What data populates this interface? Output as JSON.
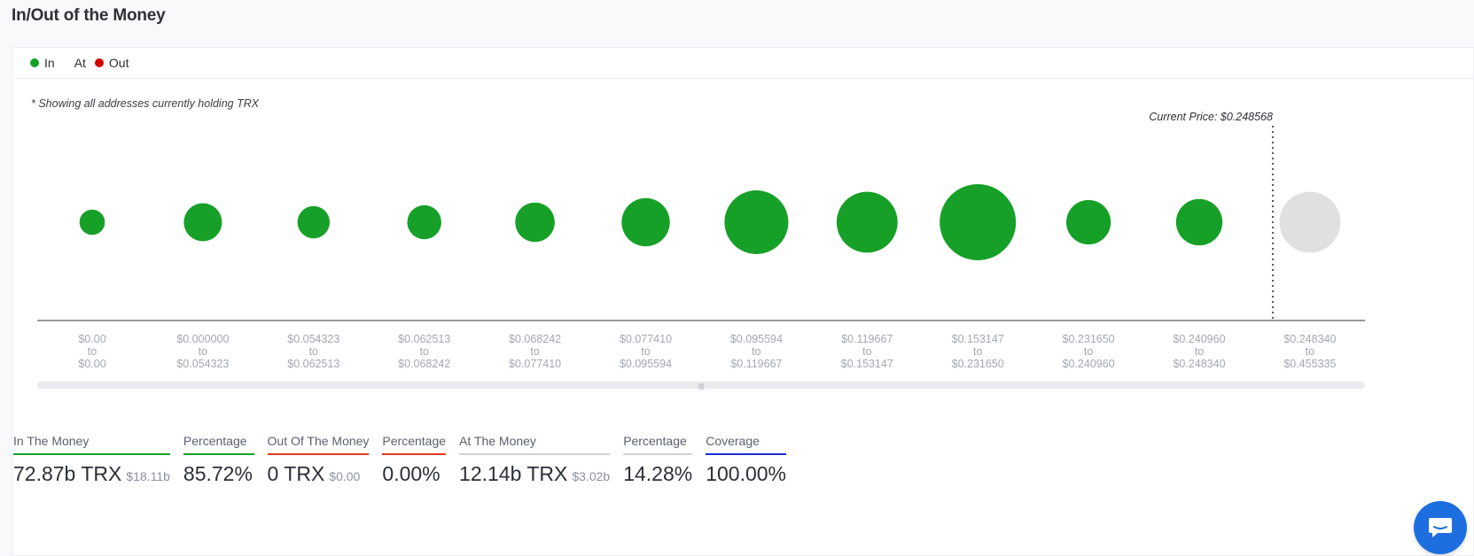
{
  "page": {
    "title": "In/Out of the Money",
    "note": "* Showing all addresses currently holding TRX"
  },
  "legend": [
    {
      "label": "In",
      "color": "#16a028"
    },
    {
      "label": "At",
      "color": ""
    },
    {
      "label": "Out",
      "color": "#d40000"
    }
  ],
  "colors": {
    "in": "#16a028",
    "at": "#e0e0e0",
    "out": "#d40000"
  },
  "chart_data": {
    "type": "bubble",
    "current_price_label": "Current Price: $0.248568",
    "current_price": 0.248568,
    "categories": [
      {
        "from": "$0.00",
        "to": "$0.00",
        "status": "in",
        "size": 0.11
      },
      {
        "from": "$0.000000",
        "to": "$0.054323",
        "status": "in",
        "size": 0.25
      },
      {
        "from": "$0.054323",
        "to": "$0.062513",
        "status": "in",
        "size": 0.18
      },
      {
        "from": "$0.062513",
        "to": "$0.068242",
        "status": "in",
        "size": 0.2
      },
      {
        "from": "$0.068242",
        "to": "$0.077410",
        "status": "in",
        "size": 0.27
      },
      {
        "from": "$0.077410",
        "to": "$0.095594",
        "status": "in",
        "size": 0.4
      },
      {
        "from": "$0.095594",
        "to": "$0.119667",
        "status": "in",
        "size": 0.7
      },
      {
        "from": "$0.119667",
        "to": "$0.153147",
        "status": "in",
        "size": 0.64
      },
      {
        "from": "$0.153147",
        "to": "$0.231650",
        "status": "in",
        "size": 1.0
      },
      {
        "from": "$0.231650",
        "to": "$0.240960",
        "status": "in",
        "size": 0.34
      },
      {
        "from": "$0.240960",
        "to": "$0.248340",
        "status": "in",
        "size": 0.37
      },
      {
        "from": "$0.248340",
        "to": "$0.455335",
        "status": "at",
        "size": 0.64
      }
    ],
    "connector": "to"
  },
  "stats": [
    {
      "label": "In The Money",
      "value": "72.87b TRX",
      "sub": "$18.11b",
      "color": "#16a028"
    },
    {
      "label": "Percentage",
      "value": "85.72%",
      "sub": "",
      "color": "#16a028"
    },
    {
      "label": "Out Of The Money",
      "value": "0 TRX",
      "sub": "$0.00",
      "color": "#e03a1e"
    },
    {
      "label": "Percentage",
      "value": "0.00%",
      "sub": "",
      "color": "#e03a1e"
    },
    {
      "label": "At The Money",
      "value": "12.14b TRX",
      "sub": "$3.02b",
      "color": "#cfd3d8"
    },
    {
      "label": "Percentage",
      "value": "14.28%",
      "sub": "",
      "color": "#cfd3d8"
    },
    {
      "label": "Coverage",
      "value": "100.00%",
      "sub": "",
      "color": "#1a2fd8"
    }
  ]
}
